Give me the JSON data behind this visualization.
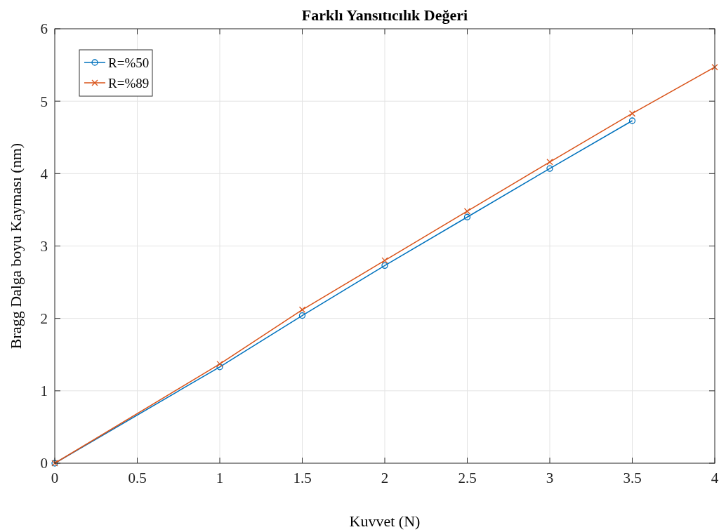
{
  "chart_data": {
    "type": "line",
    "title": "Farklı Yansıtıcılık Değeri",
    "xlabel": "Kuvvet (N)",
    "ylabel": "Bragg Dalga boyu Kayması (nm)",
    "xlim": [
      0,
      4
    ],
    "xticks": [
      0,
      0.5,
      1,
      1.5,
      2,
      2.5,
      3,
      3.5,
      4
    ],
    "ylim": [
      0,
      6
    ],
    "yticks": [
      0,
      1,
      2,
      3,
      4,
      5,
      6
    ],
    "grid": true,
    "legend": "top left",
    "series": [
      {
        "name": "R=%50",
        "color": "#0072bd",
        "marker": "circle",
        "x": [
          0,
          1,
          1.5,
          2,
          2.5,
          3,
          3.5
        ],
        "values": [
          0,
          1.33,
          2.04,
          2.73,
          3.4,
          4.07,
          4.73
        ]
      },
      {
        "name": "R=%89",
        "color": "#d95319",
        "marker": "cross",
        "x": [
          0,
          1,
          1.5,
          2,
          2.5,
          3,
          3.5,
          4
        ],
        "values": [
          0,
          1.37,
          2.12,
          2.8,
          3.48,
          4.16,
          4.83,
          5.47
        ]
      }
    ]
  }
}
